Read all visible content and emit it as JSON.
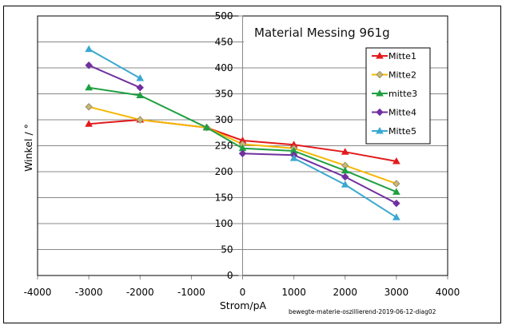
{
  "chart_data": {
    "type": "line",
    "title": "Material Messing 961g",
    "xlabel": "Strom/pA",
    "ylabel": "Winkel / °",
    "footnote": "bewegte-materie-oszillierend-2019-06-12-diag02",
    "xlim": [
      -4000,
      4000
    ],
    "ylim": [
      0,
      500
    ],
    "xticks": [
      -4000,
      -3000,
      -2000,
      -1000,
      0,
      1000,
      2000,
      3000,
      4000
    ],
    "yticks": [
      0,
      50,
      100,
      150,
      200,
      250,
      300,
      350,
      400,
      450,
      500
    ],
    "grid": "horizontal",
    "legend_position": "right",
    "series": [
      {
        "name": "Mitte1",
        "color": "#e31a1c",
        "marker": "triangle",
        "points": [
          [
            -3000,
            292
          ],
          [
            -2000,
            300
          ],
          [
            -700,
            285
          ],
          [
            0,
            260
          ],
          [
            1000,
            252
          ],
          [
            2000,
            238
          ],
          [
            3000,
            220
          ]
        ]
      },
      {
        "name": "Mitte2",
        "color": "#f5b800",
        "marker": "diamond",
        "points": [
          [
            -3000,
            325
          ],
          [
            -2000,
            300
          ],
          [
            -700,
            285
          ],
          [
            0,
            253
          ],
          [
            1000,
            245
          ],
          [
            2000,
            212
          ],
          [
            3000,
            177
          ]
        ]
      },
      {
        "name": "mitte3",
        "color": "#1fa040",
        "marker": "triangle",
        "points": [
          [
            -3000,
            362
          ],
          [
            -2000,
            347
          ],
          [
            -700,
            285
          ],
          [
            0,
            245
          ],
          [
            1000,
            240
          ],
          [
            2000,
            202
          ],
          [
            3000,
            161
          ]
        ]
      },
      {
        "name": "Mitte4",
        "color": "#7030a0",
        "marker": "diamond",
        "points": [
          [
            -3000,
            405
          ],
          [
            -2000,
            362
          ],
          [
            null,
            null
          ],
          [
            0,
            235
          ],
          [
            1000,
            232
          ],
          [
            2000,
            190
          ],
          [
            3000,
            139
          ]
        ]
      },
      {
        "name": "Mitte5",
        "color": "#3aa8d0",
        "marker": "triangle",
        "points": [
          [
            -3000,
            436
          ],
          [
            -2000,
            380
          ],
          [
            null,
            null
          ],
          [
            1000,
            226
          ],
          [
            2000,
            175
          ],
          [
            3000,
            112
          ]
        ]
      }
    ]
  }
}
